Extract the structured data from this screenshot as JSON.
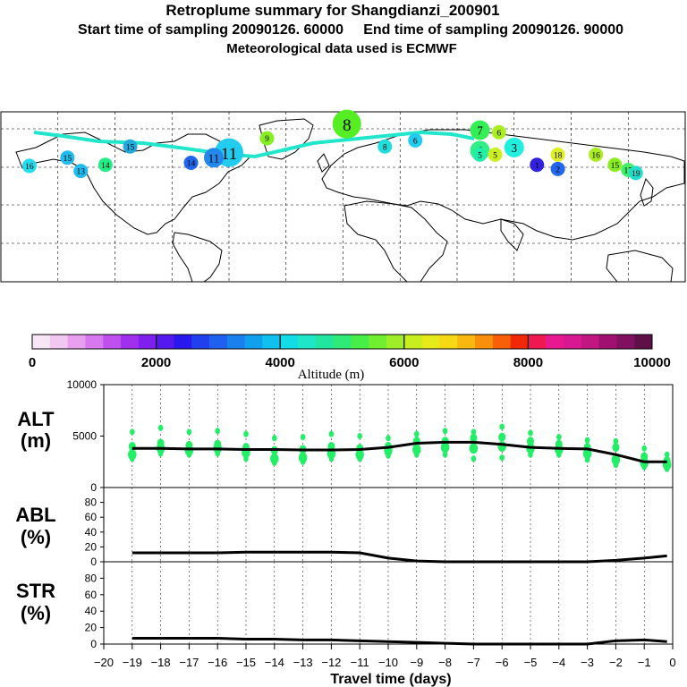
{
  "header": {
    "title": "Retroplume summary for Shangdianzi_200901",
    "sampling": "Start time of sampling 20090126. 60000     End time of sampling 20090126. 90000",
    "met": "Meteorological data used is ECMWF"
  },
  "map": {
    "track_color": "#22e6cc",
    "plume_labels": [
      {
        "label": "8",
        "lon": 2,
        "lat": 78,
        "color": "#55ee22",
        "size": "large"
      },
      {
        "label": "7",
        "lon": 72,
        "lat": 72,
        "color": "#33ee55",
        "size": "medium"
      },
      {
        "label": "6",
        "lon": 82,
        "lat": 70,
        "color": "#aaee22",
        "size": "small"
      },
      {
        "label": "6",
        "lon": 72,
        "lat": 52,
        "color": "#33ee88",
        "size": "medium"
      },
      {
        "label": "5",
        "lon": 80,
        "lat": 48,
        "color": "#ccee22",
        "size": "small"
      },
      {
        "label": "5",
        "lon": 72,
        "lat": 48,
        "color": "#22eeaa",
        "size": "small"
      },
      {
        "label": "3",
        "lon": 90,
        "lat": 55,
        "color": "#22eedd",
        "size": "medium"
      },
      {
        "label": "2",
        "lon": 113,
        "lat": 34,
        "color": "#2266ee",
        "size": "small"
      },
      {
        "label": "1",
        "lon": 102,
        "lat": 38,
        "color": "#3322dd",
        "size": "small"
      },
      {
        "label": "6",
        "lon": 38,
        "lat": 62,
        "color": "#22ccee",
        "size": "small"
      },
      {
        "label": "8",
        "lon": 22,
        "lat": 56,
        "color": "#22dddd",
        "size": "small"
      },
      {
        "label": "9",
        "lon": -40,
        "lat": 64,
        "color": "#88ee22",
        "size": "small"
      },
      {
        "label": "11",
        "lon": -60,
        "lat": 50,
        "color": "#22ccee",
        "size": "large"
      },
      {
        "label": "11",
        "lon": -68,
        "lat": 45,
        "color": "#2288ee",
        "size": "medium"
      },
      {
        "label": "14",
        "lon": -80,
        "lat": 40,
        "color": "#2266ee",
        "size": "small"
      },
      {
        "label": "15",
        "lon": -112,
        "lat": 56,
        "color": "#22aadd",
        "size": "small"
      },
      {
        "label": "15",
        "lon": -145,
        "lat": 45,
        "color": "#22bbee",
        "size": "small"
      },
      {
        "label": "16",
        "lon": -165,
        "lat": 37,
        "color": "#22ddee",
        "size": "small"
      },
      {
        "label": "13",
        "lon": -138,
        "lat": 32,
        "color": "#22bbee",
        "size": "small"
      },
      {
        "label": "14",
        "lon": -125,
        "lat": 38,
        "color": "#22ee88",
        "size": "small"
      },
      {
        "label": "15",
        "lon": 143,
        "lat": 38,
        "color": "#88ee22",
        "size": "small"
      },
      {
        "label": "17",
        "lon": 150,
        "lat": 33,
        "color": "#44ee66",
        "size": "small"
      },
      {
        "label": "19",
        "lon": 154,
        "lat": 30,
        "color": "#22ddcc",
        "size": "small"
      },
      {
        "label": "16",
        "lon": 133,
        "lat": 48,
        "color": "#aaee22",
        "size": "small"
      },
      {
        "label": "18",
        "lon": 113,
        "lat": 48,
        "color": "#ddee22",
        "size": "small"
      }
    ]
  },
  "colorbar": {
    "stops": [
      "#f6e6f6",
      "#f0c8f0",
      "#e8a0ee",
      "#d878ee",
      "#c050ee",
      "#a030ee",
      "#8020ee",
      "#5518ee",
      "#2818ee",
      "#2040ee",
      "#2060ee",
      "#1a80ee",
      "#10a0ee",
      "#10c0ee",
      "#12dde6",
      "#1ee6c8",
      "#20e6a0",
      "#30ea78",
      "#48ee48",
      "#70ee30",
      "#a0ee28",
      "#c8ee20",
      "#e6ea18",
      "#f6d814",
      "#f8b810",
      "#f8900c",
      "#f86008",
      "#f02808",
      "#f01850",
      "#e81890",
      "#d81890",
      "#c01880",
      "#a01070",
      "#801060",
      "#601048"
    ],
    "tick_labels": [
      "0",
      "2000",
      "4000",
      "6000",
      "8000",
      "10000"
    ],
    "label": "Altitude (m)"
  },
  "panels": {
    "alt": {
      "label_top": "ALT",
      "label_bottom": "(m)",
      "yticks": [
        "0",
        "5000",
        "10000"
      ],
      "ymax": 10000
    },
    "abl": {
      "label_top": "ABL",
      "label_bottom": "(%)",
      "yticks": [
        "0",
        "20",
        "40",
        "60",
        "80"
      ],
      "ymax": 100
    },
    "str": {
      "label_top": "STR",
      "label_bottom": "(%)",
      "yticks": [
        "0",
        "20",
        "40",
        "60",
        "80"
      ],
      "ymax": 100
    },
    "xticks": [
      "−20",
      "−19",
      "−18",
      "−17",
      "−16",
      "−15",
      "−14",
      "−13",
      "−12",
      "−11",
      "−10",
      "−9",
      "−8",
      "−7",
      "−6",
      "−5",
      "−4",
      "−3",
      "−2",
      "−1",
      "0"
    ],
    "xlabel": "Travel time (days)"
  },
  "chart_data": {
    "type": "line",
    "x": [
      -19,
      -18,
      -17,
      -16,
      -15,
      -14,
      -13,
      -12,
      -11,
      -10,
      -9,
      -8,
      -7,
      -6,
      -5,
      -4,
      -3,
      -2,
      -1,
      -0.2
    ],
    "xlim": [
      -20,
      0
    ],
    "xlabel": "Travel time (days)",
    "alt": {
      "ylabel": "ALT (m)",
      "ylim": [
        0,
        10000
      ],
      "median": [
        3800,
        3800,
        3750,
        3750,
        3700,
        3700,
        3650,
        3650,
        3700,
        3900,
        4300,
        4400,
        4400,
        4200,
        3900,
        3800,
        3750,
        3200,
        2500,
        2500
      ],
      "scatter": [
        [
          5400,
          4000,
          3200,
          2800
        ],
        [
          5800,
          4300,
          3800,
          3300
        ],
        [
          5400,
          4100,
          3600,
          3200
        ],
        [
          5500,
          4200,
          3800,
          3300
        ],
        [
          5200,
          3900,
          3400,
          2800
        ],
        [
          4800,
          3600,
          2800,
          2400
        ],
        [
          4900,
          3700,
          2900,
          2500
        ],
        [
          5200,
          4000,
          3300,
          2800
        ],
        [
          5000,
          3800,
          3200,
          2800
        ],
        [
          4800,
          4000,
          3600,
          3100
        ],
        [
          5200,
          4500,
          3700,
          3200
        ],
        [
          5500,
          4500,
          3900,
          3200
        ],
        [
          5400,
          4800,
          3800,
          2800
        ],
        [
          5900,
          4900,
          4000,
          2900
        ],
        [
          5300,
          4500,
          3800,
          3200
        ],
        [
          4900,
          4200,
          3700,
          3200
        ],
        [
          4600,
          3900,
          3300,
          2700
        ],
        [
          4500,
          3900,
          2700,
          2200
        ],
        [
          3800,
          3000,
          2400,
          2000
        ],
        [
          3200,
          2600,
          2200,
          1800
        ]
      ]
    },
    "abl": {
      "ylabel": "ABL (%)",
      "ylim": [
        0,
        100
      ],
      "values": [
        12,
        12,
        12,
        12,
        13,
        13,
        13,
        13,
        12,
        5,
        1,
        0,
        0,
        0,
        0,
        0,
        0,
        2,
        5,
        8
      ]
    },
    "str": {
      "ylabel": "STR (%)",
      "ylim": [
        0,
        100
      ],
      "values": [
        7,
        7,
        7,
        7,
        6,
        6,
        5,
        5,
        4,
        3,
        2,
        1,
        0,
        0,
        0,
        0,
        0,
        4,
        5,
        3
      ]
    }
  }
}
